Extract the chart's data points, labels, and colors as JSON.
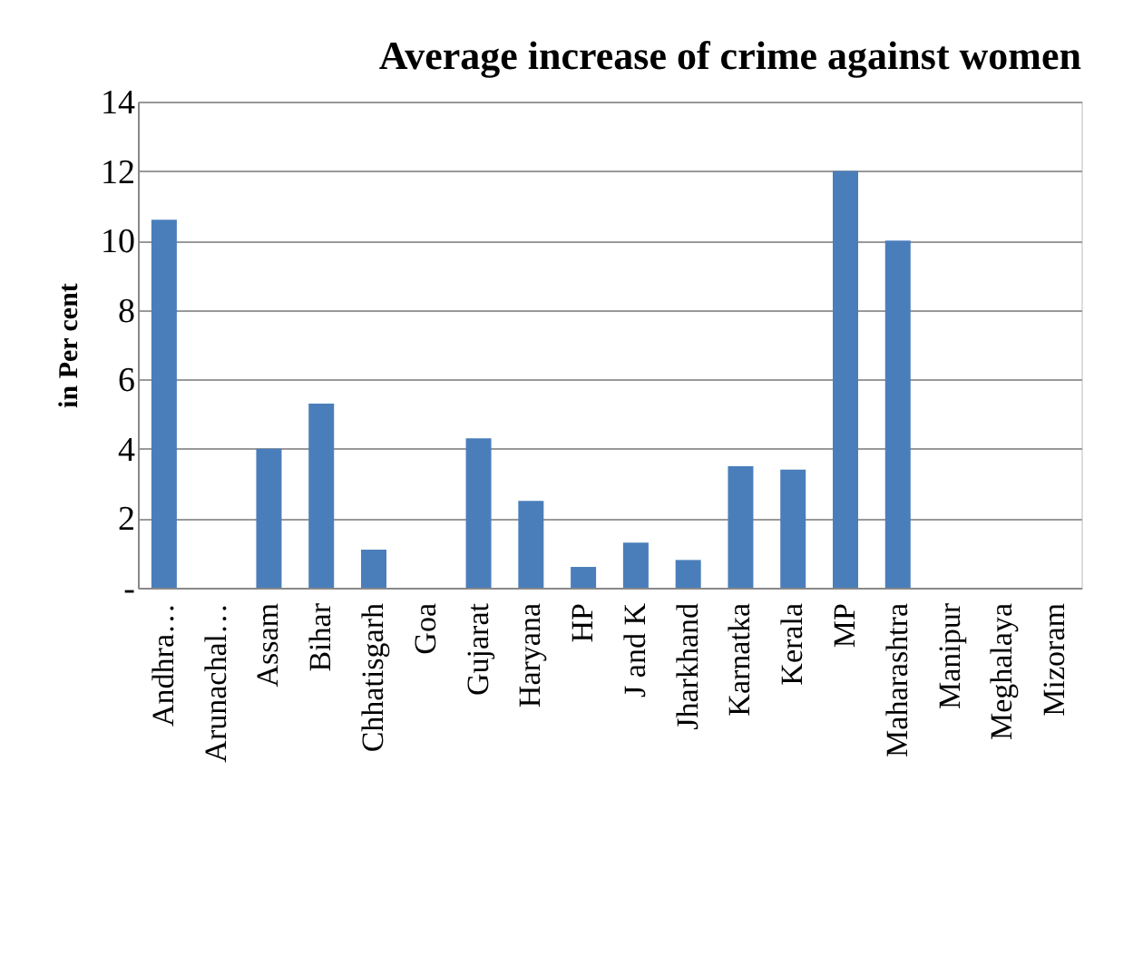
{
  "chart_data": {
    "type": "bar",
    "title": "Average increase of crime against women",
    "ylabel": "in Per cent",
    "categories": [
      "Andhra…",
      "Arunachal…",
      "Assam",
      "Bihar",
      "Chhatisgarh",
      "Goa",
      "Gujarat",
      "Haryana",
      "HP",
      "J and K",
      "Jharkhand",
      "Karnatka",
      "Kerala",
      "MP",
      "Maharashtra",
      "Manipur",
      "Meghalaya",
      "Mizoram"
    ],
    "values": [
      10.6,
      0,
      4.0,
      5.3,
      1.1,
      0,
      4.3,
      2.5,
      0.6,
      1.3,
      0.8,
      3.5,
      3.4,
      12.0,
      10.0,
      0,
      0,
      0
    ],
    "color": "#4a7ebb",
    "ylim": [
      0,
      14
    ],
    "yticks": [
      {
        "value": 0,
        "label": "-"
      },
      2,
      4,
      6,
      8,
      10,
      12,
      14
    ],
    "grid": "y"
  }
}
